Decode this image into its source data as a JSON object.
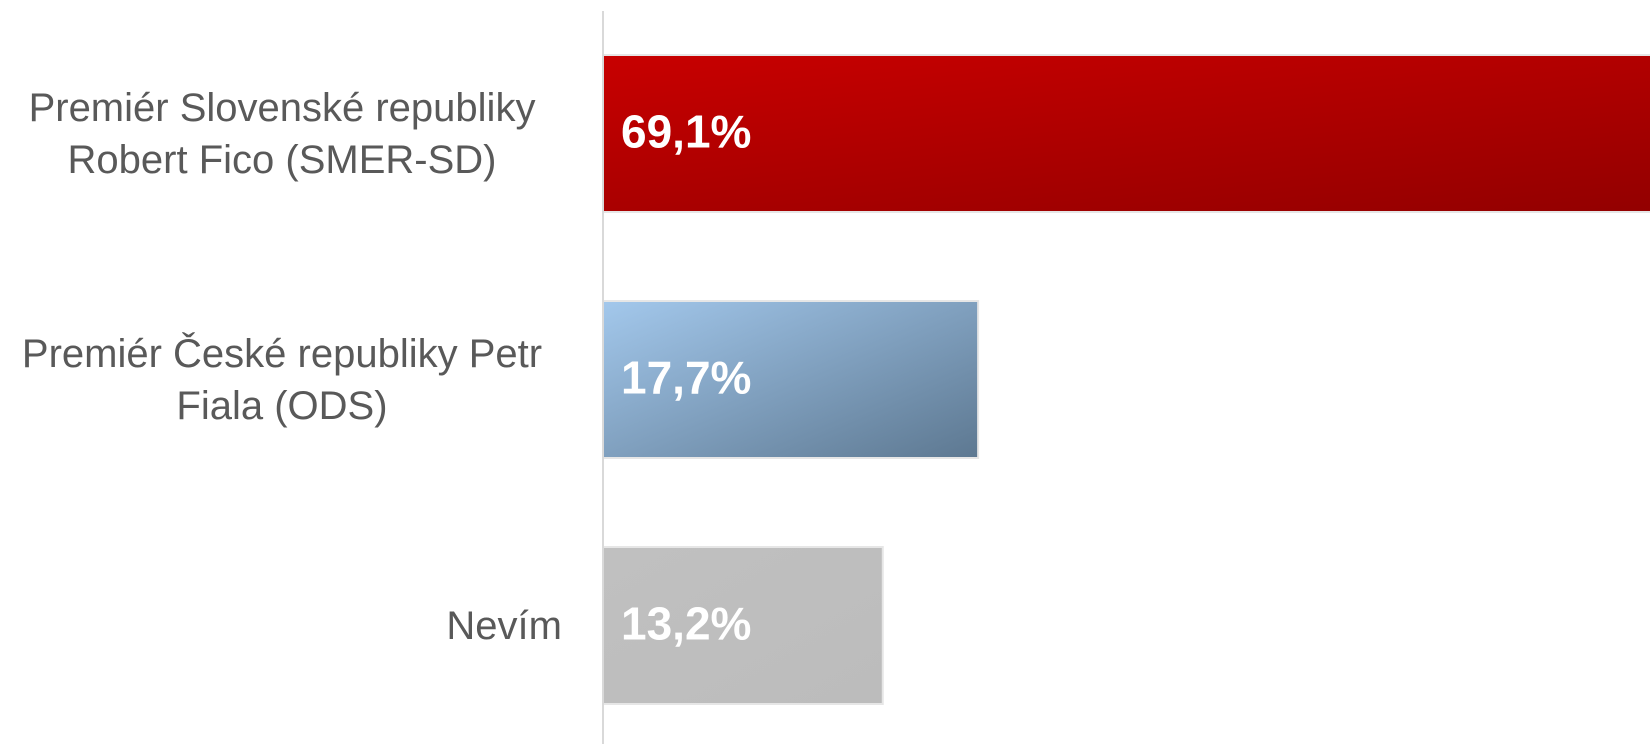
{
  "chart_data": {
    "type": "bar",
    "orientation": "horizontal",
    "categories": [
      "Premiér Slovenské republiky Robert Fico (SMER-SD)",
      "Premiér České republiky Petr Fiala (ODS)",
      "Nevím"
    ],
    "values": [
      69.1,
      17.7,
      13.2
    ],
    "value_labels": [
      "69,1%",
      "17,7%",
      "13,2%"
    ],
    "colors": [
      [
        "#c80000",
        "#8a0000"
      ],
      [
        "#a3c8ec",
        "#5d7891"
      ],
      [
        "#c0c0c0",
        "#bcbcbc"
      ]
    ],
    "xlim": [
      0,
      49.4
    ],
    "grid": false
  }
}
